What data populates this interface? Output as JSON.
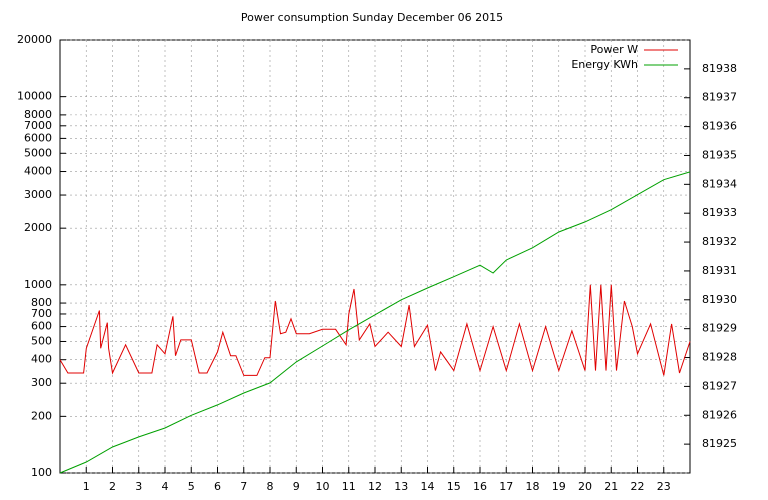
{
  "chart_data": {
    "type": "line",
    "title": "Power consumption Sunday December 06 2015",
    "xlim": [
      0,
      24
    ],
    "xticks": [
      1,
      2,
      3,
      4,
      5,
      6,
      7,
      8,
      9,
      10,
      11,
      12,
      13,
      14,
      15,
      16,
      17,
      18,
      19,
      20,
      21,
      22,
      23
    ],
    "ylim": [
      100,
      20000
    ],
    "ylog": true,
    "yticks": [
      100,
      200,
      300,
      400,
      500,
      600,
      700,
      800,
      1000,
      2000,
      3000,
      4000,
      5000,
      6000,
      7000,
      8000,
      10000,
      20000
    ],
    "y2lim": [
      81924,
      81939
    ],
    "y2ticks": [
      81925,
      81926,
      81927,
      81928,
      81929,
      81930,
      81931,
      81932,
      81933,
      81934,
      81935,
      81936,
      81937,
      81938
    ],
    "grid": true,
    "legend": "top-right",
    "series": [
      {
        "name": "Power W",
        "color": "#e00000",
        "x": [
          0,
          0.3,
          0.6,
          0.9,
          1.0,
          1.5,
          1.55,
          1.8,
          1.85,
          2.0,
          2.5,
          3.0,
          3.5,
          3.7,
          4.0,
          4.3,
          4.4,
          4.6,
          5.0,
          5.3,
          5.6,
          6.0,
          6.2,
          6.5,
          6.7,
          7.0,
          7.5,
          7.8,
          8.0,
          8.2,
          8.4,
          8.6,
          8.8,
          9.0,
          9.5,
          10.0,
          10.5,
          10.9,
          11.0,
          11.2,
          11.4,
          11.8,
          12.0,
          12.5,
          13.0,
          13.3,
          13.5,
          14.0,
          14.3,
          14.5,
          15.0,
          15.5,
          16.0,
          16.5,
          17.0,
          17.5,
          18.0,
          18.5,
          19.0,
          19.5,
          20.0,
          20.2,
          20.4,
          20.6,
          20.8,
          21.0,
          21.2,
          21.5,
          21.8,
          22.0,
          22.5,
          23.0,
          23.3,
          23.6,
          24
        ],
        "values": [
          400,
          340,
          340,
          340,
          460,
          730,
          460,
          630,
          460,
          340,
          480,
          340,
          340,
          480,
          430,
          680,
          420,
          510,
          510,
          340,
          340,
          440,
          560,
          420,
          420,
          330,
          330,
          410,
          410,
          820,
          550,
          560,
          660,
          550,
          550,
          580,
          580,
          480,
          700,
          950,
          510,
          620,
          470,
          560,
          470,
          780,
          470,
          610,
          350,
          440,
          350,
          620,
          350,
          600,
          350,
          620,
          350,
          600,
          350,
          570,
          350,
          1000,
          350,
          1000,
          350,
          1000,
          350,
          820,
          600,
          430,
          620,
          330,
          620,
          340,
          500
        ]
      },
      {
        "name": "Energy KWh",
        "color": "#00a000",
        "axis": "y2",
        "x": [
          0,
          1,
          2,
          3,
          4,
          5,
          6,
          7,
          8,
          9,
          10,
          11,
          12,
          13,
          14,
          15,
          16,
          16.5,
          17,
          18,
          19,
          20,
          21,
          22,
          23,
          24
        ],
        "values": [
          81924.0,
          81924.38,
          81924.9,
          81925.25,
          81925.56,
          81926.0,
          81926.36,
          81926.77,
          81927.12,
          81927.85,
          81928.4,
          81928.96,
          81929.48,
          81930.0,
          81930.41,
          81930.8,
          81931.2,
          81930.93,
          81931.38,
          81931.8,
          81932.35,
          81932.7,
          81933.12,
          81933.64,
          81934.16,
          81934.43
        ]
      }
    ]
  }
}
